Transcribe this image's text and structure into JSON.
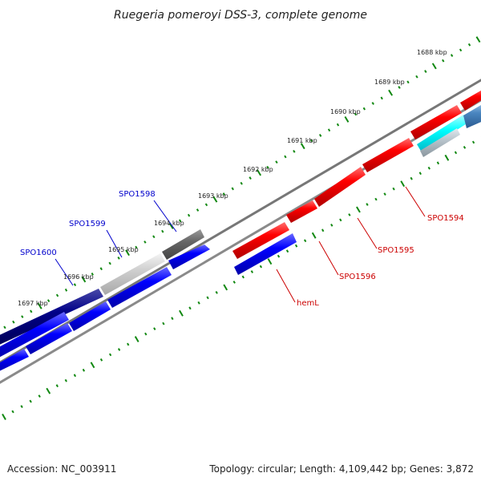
{
  "title": "Ruegeria pomeroyi DSS-3, complete genome",
  "footer": {
    "accession": "Accession: NC_003911",
    "topology": "Topology: circular; Length: 4,109,442 bp; Genes: 3,872"
  },
  "ruler": {
    "unit": "kbp",
    "ticks": [
      "1688 kbp",
      "1689 kbp",
      "1690 kbp",
      "1691 kbp",
      "1692 kbp",
      "1693 kbp",
      "1694 kbp",
      "1695 kbp",
      "1696 kbp",
      "1697 kbp"
    ]
  },
  "gene_labels": [
    {
      "name": "SPO1598",
      "color": "#0000cc"
    },
    {
      "name": "SPO1599",
      "color": "#0000cc"
    },
    {
      "name": "SPO1600",
      "color": "#0000cc"
    },
    {
      "name": "SPO1594",
      "color": "#cc0000"
    },
    {
      "name": "SPO1595",
      "color": "#cc0000"
    },
    {
      "name": "SPO1596",
      "color": "#cc0000"
    },
    {
      "name": "hemL",
      "color": "#cc0000"
    }
  ],
  "colors": {
    "forward_strand": "#ee0000",
    "reverse_strand": "#0000ee",
    "backbone": "#808080",
    "ticks": "#118811"
  }
}
